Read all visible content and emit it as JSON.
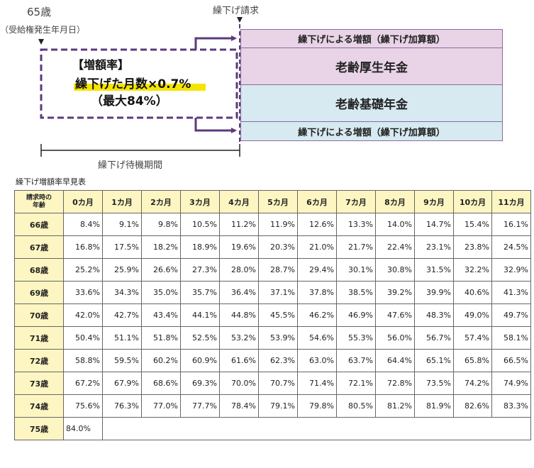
{
  "diagram": {
    "age65_label": "65歳",
    "age65_sub": "（受給権発生年月日）",
    "deferral_request_label": "繰下げ請求",
    "rate_box": {
      "heading": "【増額率】",
      "formula": "繰下げた月数×0.7%",
      "max": "（最大84%）"
    },
    "upper_increase": "繰下げによる増額（繰下げ加算額）",
    "employee_pension": "老齢厚生年金",
    "basic_pension": "老齢基礎年金",
    "lower_increase": "繰下げによる増額（繰下げ加算額）",
    "waiting_period": "繰下げ待機期間",
    "colors": {
      "purple": "#5b3a7e",
      "pink": "#e9d4e7",
      "blue": "#d7eaf1",
      "highlight": "#f5e500"
    }
  },
  "table": {
    "title": "繰下げ増額率早見表",
    "corner_header": [
      "請求時の",
      "年齢"
    ],
    "month_headers": [
      "0カ月",
      "1カ月",
      "2カ月",
      "3カ月",
      "4カ月",
      "5カ月",
      "6カ月",
      "7カ月",
      "8カ月",
      "9カ月",
      "10カ月",
      "11カ月"
    ],
    "rows": [
      {
        "age": "66歳",
        "values": [
          "8.4%",
          "9.1%",
          "9.8%",
          "10.5%",
          "11.2%",
          "11.9%",
          "12.6%",
          "13.3%",
          "14.0%",
          "14.7%",
          "15.4%",
          "16.1%"
        ]
      },
      {
        "age": "67歳",
        "values": [
          "16.8%",
          "17.5%",
          "18.2%",
          "18.9%",
          "19.6%",
          "20.3%",
          "21.0%",
          "21.7%",
          "22.4%",
          "23.1%",
          "23.8%",
          "24.5%"
        ]
      },
      {
        "age": "68歳",
        "values": [
          "25.2%",
          "25.9%",
          "26.6%",
          "27.3%",
          "28.0%",
          "28.7%",
          "29.4%",
          "30.1%",
          "30.8%",
          "31.5%",
          "32.2%",
          "32.9%"
        ]
      },
      {
        "age": "69歳",
        "values": [
          "33.6%",
          "34.3%",
          "35.0%",
          "35.7%",
          "36.4%",
          "37.1%",
          "37.8%",
          "38.5%",
          "39.2%",
          "39.9%",
          "40.6%",
          "41.3%"
        ]
      },
      {
        "age": "70歳",
        "values": [
          "42.0%",
          "42.7%",
          "43.4%",
          "44.1%",
          "44.8%",
          "45.5%",
          "46.2%",
          "46.9%",
          "47.6%",
          "48.3%",
          "49.0%",
          "49.7%"
        ]
      },
      {
        "age": "71歳",
        "values": [
          "50.4%",
          "51.1%",
          "51.8%",
          "52.5%",
          "53.2%",
          "53.9%",
          "54.6%",
          "55.3%",
          "56.0%",
          "56.7%",
          "57.4%",
          "58.1%"
        ]
      },
      {
        "age": "72歳",
        "values": [
          "58.8%",
          "59.5%",
          "60.2%",
          "60.9%",
          "61.6%",
          "62.3%",
          "63.0%",
          "63.7%",
          "64.4%",
          "65.1%",
          "65.8%",
          "66.5%"
        ]
      },
      {
        "age": "73歳",
        "values": [
          "67.2%",
          "67.9%",
          "68.6%",
          "69.3%",
          "70.0%",
          "70.7%",
          "71.4%",
          "72.1%",
          "72.8%",
          "73.5%",
          "74.2%",
          "74.9%"
        ]
      },
      {
        "age": "74歳",
        "values": [
          "75.6%",
          "76.3%",
          "77.0%",
          "77.7%",
          "78.4%",
          "79.1%",
          "79.8%",
          "80.5%",
          "81.2%",
          "81.9%",
          "82.6%",
          "83.3%"
        ]
      },
      {
        "age": "75歳",
        "values": [
          "84.0%"
        ]
      }
    ]
  }
}
